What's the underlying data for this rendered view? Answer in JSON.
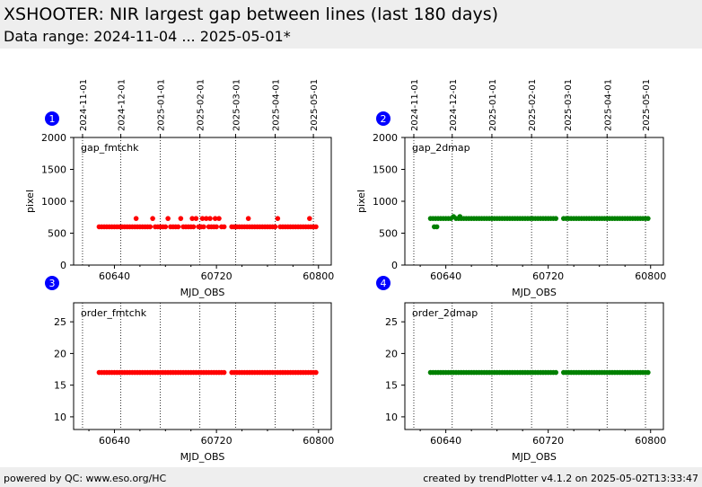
{
  "header": {
    "title": "XSHOOTER: NIR largest gap between lines (last 180 days)",
    "subtitle": "Data range: 2024-11-04 ... 2025-05-01*"
  },
  "footer": {
    "left": "powered by QC: www.eso.org/HC",
    "right": "created by trendPlotter v4.1.2 on 2025-05-02T13:33:47"
  },
  "colors": {
    "red": "#ff0000",
    "green": "#008000",
    "badge": "#0000ff"
  },
  "date_ticks": [
    {
      "label": "2024-11-01",
      "mjd": 60615
    },
    {
      "label": "2024-12-01",
      "mjd": 60645
    },
    {
      "label": "2025-01-01",
      "mjd": 60676
    },
    {
      "label": "2025-02-01",
      "mjd": 60707
    },
    {
      "label": "2025-03-01",
      "mjd": 60735
    },
    {
      "label": "2025-04-01",
      "mjd": 60766
    },
    {
      "label": "2025-05-01",
      "mjd": 60796
    }
  ],
  "chart_data": [
    {
      "type": "scatter",
      "panel": "1",
      "label": "gap_fmtchk",
      "color": "red",
      "xlabel": "MJD_OBS",
      "ylabel": "pixel",
      "xlim": [
        60608,
        60810
      ],
      "ylim": [
        0,
        2000
      ],
      "xticks": [
        "60640",
        "60720",
        "60800"
      ],
      "yticks": [
        "0",
        "500",
        "1000",
        "1500",
        "2000"
      ],
      "base_y": 600,
      "x_start": 60628,
      "x_end": 60798,
      "step": 2,
      "outliers": [
        {
          "x": 60657,
          "y": 730
        },
        {
          "x": 60670,
          "y": 730
        },
        {
          "x": 60682,
          "y": 730
        },
        {
          "x": 60692,
          "y": 730
        },
        {
          "x": 60701,
          "y": 730
        },
        {
          "x": 60704,
          "y": 730
        },
        {
          "x": 60709,
          "y": 730
        },
        {
          "x": 60712,
          "y": 730
        },
        {
          "x": 60715,
          "y": 730
        },
        {
          "x": 60719,
          "y": 730
        },
        {
          "x": 60722,
          "y": 730
        },
        {
          "x": 60745,
          "y": 730
        },
        {
          "x": 60768,
          "y": 730
        },
        {
          "x": 60793,
          "y": 730
        }
      ],
      "gaps": [
        [
          60727,
          60730
        ]
      ]
    },
    {
      "type": "scatter",
      "panel": "2",
      "label": "gap_2dmap",
      "color": "green",
      "xlabel": "MJD_OBS",
      "ylabel": "pixel",
      "xlim": [
        60608,
        60810
      ],
      "ylim": [
        0,
        2000
      ],
      "xticks": [
        "60640",
        "60720",
        "60800"
      ],
      "yticks": [
        "0",
        "500",
        "1000",
        "1500",
        "2000"
      ],
      "base_y": 730,
      "x_start": 60628,
      "x_end": 60798,
      "step": 2,
      "outliers": [
        {
          "x": 60631,
          "y": 600
        },
        {
          "x": 60633,
          "y": 600
        },
        {
          "x": 60646,
          "y": 760
        },
        {
          "x": 60651,
          "y": 760
        }
      ],
      "gaps": [
        [
          60727,
          60730
        ]
      ]
    },
    {
      "type": "scatter",
      "panel": "3",
      "label": "order_fmtchk",
      "color": "red",
      "xlabel": "MJD_OBS",
      "ylabel": "",
      "xlim": [
        60608,
        60810
      ],
      "ylim": [
        8,
        28
      ],
      "xticks": [
        "60640",
        "60720",
        "60800"
      ],
      "yticks": [
        "10",
        "15",
        "20",
        "25"
      ],
      "base_y": 17,
      "x_start": 60628,
      "x_end": 60798,
      "step": 2,
      "outliers": [],
      "gaps": [
        [
          60727,
          60730
        ]
      ]
    },
    {
      "type": "scatter",
      "panel": "4",
      "label": "order_2dmap",
      "color": "green",
      "xlabel": "MJD_OBS",
      "ylabel": "",
      "xlim": [
        60608,
        60810
      ],
      "ylim": [
        8,
        28
      ],
      "xticks": [
        "60640",
        "60720",
        "60800"
      ],
      "yticks": [
        "10",
        "15",
        "20",
        "25"
      ],
      "base_y": 17,
      "x_start": 60628,
      "x_end": 60798,
      "step": 2,
      "outliers": [],
      "gaps": [
        [
          60727,
          60730
        ]
      ]
    }
  ]
}
